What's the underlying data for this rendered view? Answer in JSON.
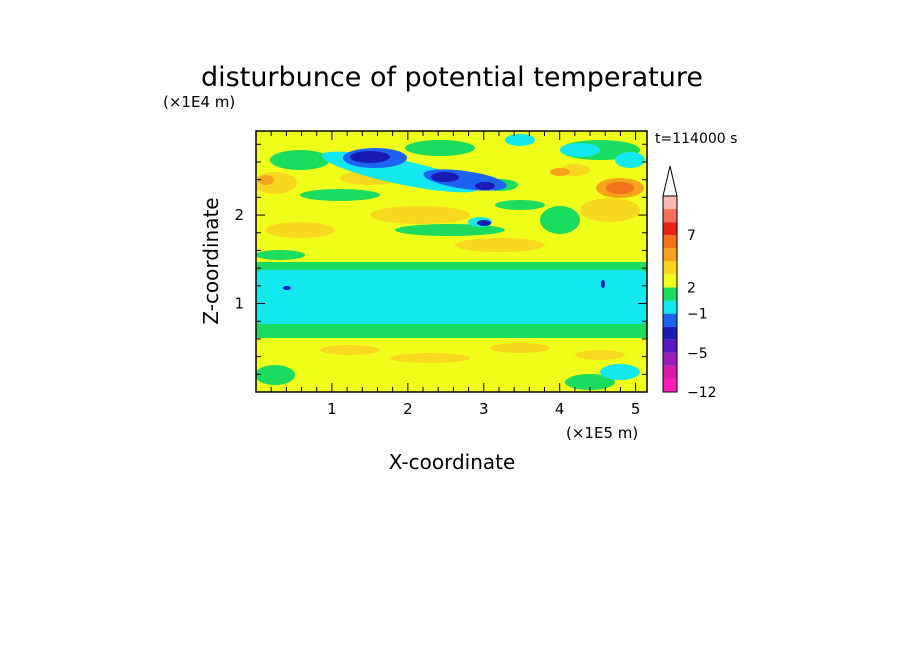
{
  "chart_data": {
    "type": "heatmap",
    "title": "disturbunce of potential temperature",
    "xlabel": "X-coordinate",
    "ylabel": "Z-coordinate",
    "x_unit": "(×1E5 m)",
    "y_unit": "(×1E4 m)",
    "time_label": "t=114000 s",
    "xlim": [
      0,
      5.15
    ],
    "ylim": [
      0,
      2.95
    ],
    "x_ticks": [
      "1",
      "2",
      "3",
      "4",
      "5"
    ],
    "y_ticks": [
      "1",
      "2"
    ],
    "colorbar": {
      "labels": [
        "7",
        "2",
        "−1",
        "−5",
        "−12"
      ],
      "colors": [
        "#ff1cb8",
        "#d71aa6",
        "#9b1fb8",
        "#5a15c4",
        "#1a1ab4",
        "#1c63f2",
        "#12e8ee",
        "#1bdc5f",
        "#f0ff1a",
        "#f8d81e",
        "#f5a31a",
        "#f2711a",
        "#ea2418",
        "#f56e5e",
        "#f9b9b3"
      ],
      "arrow": "top"
    },
    "fields": {
      "background": "#f0ff1a",
      "features": [
        {
          "name": "cold layer",
          "z_range": [
            0.8,
            1.45
          ],
          "value": "-1"
        },
        {
          "name": "negative anomaly",
          "x": 1.5,
          "z": 2.7,
          "value": "-5"
        },
        {
          "name": "negative anomaly",
          "x": 2.6,
          "z": 2.45,
          "value": "-5"
        },
        {
          "name": "positive anomaly",
          "x": 4.85,
          "z": 2.3,
          "value": "7"
        }
      ]
    }
  }
}
